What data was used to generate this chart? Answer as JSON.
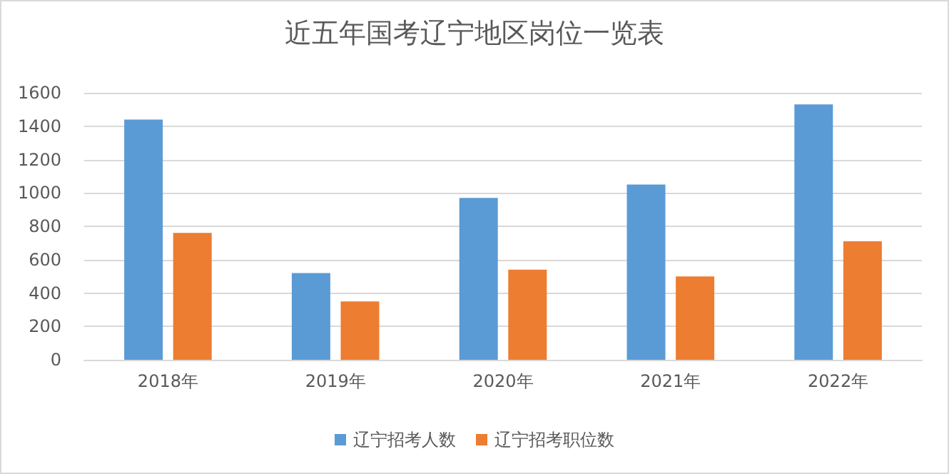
{
  "chart_data": {
    "type": "bar",
    "title": "近五年国考辽宁地区岗位一览表",
    "categories": [
      "2018年",
      "2019年",
      "2020年",
      "2021年",
      "2022年"
    ],
    "series": [
      {
        "name": "辽宁招考人数",
        "color": "#5b9bd5",
        "values": [
          1440,
          520,
          970,
          1050,
          1530
        ]
      },
      {
        "name": "辽宁招考职位数",
        "color": "#ed7d31",
        "values": [
          760,
          350,
          540,
          500,
          710
        ]
      }
    ],
    "ylim": [
      0,
      1600
    ],
    "yticks": [
      0,
      200,
      400,
      600,
      800,
      1000,
      1200,
      1400,
      1600
    ],
    "grid": "y",
    "legend": "bottom"
  }
}
